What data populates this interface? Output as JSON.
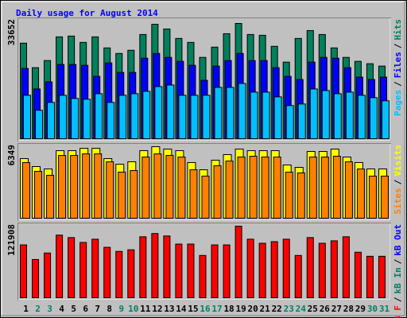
{
  "chart_data": [
    {
      "type": "bar",
      "title": "Daily usage for August 2014",
      "legend_separator": "/",
      "ylim": [
        0,
        33652
      ],
      "series": [
        {
          "name": "Hits",
          "color": "#00805c",
          "values": [
            27890,
            20745,
            22820,
            29735,
            29965,
            28120,
            29735,
            26510,
            24895,
            25815,
            30425,
            33420,
            32040,
            29275,
            28120,
            23740,
            26740,
            30655,
            33652,
            30425,
            30195,
            26970,
            22360,
            29275,
            31580,
            30425,
            26510,
            23740,
            22590,
            21900,
            21205
          ]
        },
        {
          "name": "Files",
          "color": "#0000ff",
          "values": [
            20515,
            14520,
            16595,
            21665,
            21665,
            21435,
            18210,
            22130,
            19360,
            19360,
            23510,
            24895,
            23740,
            22590,
            21435,
            17055,
            21205,
            22820,
            24895,
            22820,
            22820,
            20745,
            18210,
            17290,
            22360,
            23740,
            23510,
            20745,
            17980,
            17290,
            17980
          ]
        },
        {
          "name": "Pages",
          "color": "#00c0ff",
          "values": [
            12680,
            8300,
            10600,
            12680,
            11755,
            11525,
            13140,
            10600,
            12680,
            13140,
            13830,
            15215,
            15675,
            12680,
            12680,
            12680,
            14985,
            14985,
            16135,
            13600,
            13600,
            12215,
            9680,
            10140,
            14520,
            14060,
            13140,
            13600,
            12680,
            11985,
            11065
          ]
        }
      ]
    },
    {
      "type": "bar",
      "legend_separator": "/",
      "ylim": [
        0,
        6349
      ],
      "series": [
        {
          "name": "Visits",
          "color": "#ffff00",
          "values": [
            5290,
            4585,
            4375,
            5995,
            5995,
            6205,
            6205,
            5290,
            4795,
            5010,
            5995,
            6349,
            6135,
            5995,
            4940,
            4300,
            5150,
            5645,
            6135,
            5995,
            5995,
            5995,
            4725,
            4515,
            5925,
            5925,
            6135,
            5430,
            4940,
            4375,
            4375
          ]
        },
        {
          "name": "Sites",
          "color": "#ff8000",
          "values": [
            4935,
            4160,
            3810,
            5570,
            5570,
            5710,
            5710,
            5005,
            4090,
            4230,
            5430,
            5710,
            5570,
            5430,
            4300,
            3735,
            4655,
            5075,
            5430,
            5500,
            5430,
            5430,
            4090,
            4020,
            5430,
            5430,
            5500,
            5005,
            4370,
            3735,
            3735
          ]
        }
      ]
    },
    {
      "type": "bar",
      "legend_separator": "/",
      "ylim": [
        0,
        121908
      ],
      "categories": [
        "1",
        "2",
        "3",
        "4",
        "5",
        "6",
        "7",
        "8",
        "9",
        "10",
        "11",
        "12",
        "13",
        "14",
        "15",
        "16",
        "17",
        "18",
        "19",
        "20",
        "21",
        "22",
        "23",
        "24",
        "25",
        "26",
        "27",
        "28",
        "29",
        "30",
        "31"
      ],
      "category_colors": [
        "#000000",
        "#008060",
        "#008060",
        "#000000",
        "#000000",
        "#000000",
        "#000000",
        "#000000",
        "#008060",
        "#008060",
        "#000000",
        "#000000",
        "#000000",
        "#000000",
        "#000000",
        "#008060",
        "#008060",
        "#000000",
        "#000000",
        "#000000",
        "#000000",
        "#000000",
        "#008060",
        "#008060",
        "#000000",
        "#000000",
        "#000000",
        "#000000",
        "#000000",
        "#008060",
        "#008060"
      ],
      "series": [
        {
          "name": "kB Out",
          "color": "#0000ff",
          "values": [
            0,
            0,
            0,
            0,
            0,
            0,
            0,
            0,
            0,
            0,
            0,
            0,
            0,
            0,
            0,
            0,
            0,
            0,
            0,
            0,
            0,
            0,
            0,
            0,
            0,
            0,
            0,
            0,
            0,
            0,
            0
          ]
        },
        {
          "name": "kB In",
          "color": "#00805c",
          "values": [
            0,
            0,
            0,
            0,
            0,
            0,
            0,
            0,
            0,
            0,
            0,
            0,
            0,
            0,
            0,
            0,
            0,
            0,
            0,
            0,
            0,
            0,
            0,
            0,
            0,
            0,
            0,
            0,
            0,
            0,
            0
          ]
        },
        {
          "name": "kB F",
          "color": "#ff0000",
          "values": [
            90025,
            65095,
            76175,
            106645,
            102490,
            94180,
            99720,
            85870,
            78945,
            81715,
            103875,
            109415,
            105260,
            91410,
            91410,
            72020,
            90025,
            90025,
            121908,
            99720,
            92795,
            95565,
            99720,
            72020,
            102490,
            92795,
            96950,
            103875,
            77560,
            70635,
            70635
          ]
        }
      ]
    }
  ]
}
